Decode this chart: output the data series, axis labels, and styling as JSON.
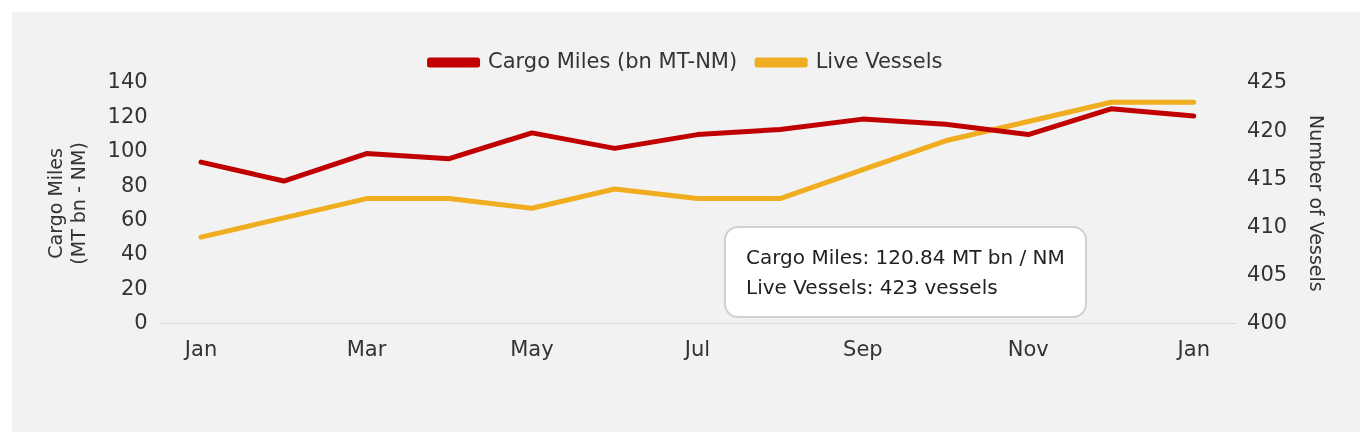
{
  "chart_data": {
    "type": "line",
    "categories": [
      "Jan",
      null,
      "Mar",
      null,
      "May",
      null,
      "Jul",
      null,
      "Sep",
      null,
      "Nov",
      null,
      "Jan"
    ],
    "series": [
      {
        "name": "Cargo Miles (bn MT-NM)",
        "color": "#c00000",
        "values": [
          94,
          83,
          99,
          96,
          111,
          102,
          110,
          113,
          119,
          116,
          110,
          125,
          120.84
        ]
      },
      {
        "name": "Live Vessels",
        "color": "#f0ad1f",
        "axis": "y2",
        "values": [
          409,
          411,
          413,
          413,
          412,
          414,
          413,
          413,
          416,
          419,
          421,
          423,
          423
        ]
      }
    ],
    "ylabel": "Cargo Miles\n(MT bn - NM)",
    "y2label": "Number of Vessels",
    "ylim": [
      0,
      140
    ],
    "yticks": [
      0,
      20,
      40,
      60,
      80,
      100,
      120,
      140
    ],
    "y2lim": [
      400,
      425
    ],
    "y2ticks": [
      400,
      405,
      410,
      415,
      420,
      425
    ],
    "legend": "top",
    "grid": false,
    "marker": "none",
    "line_style": "solid",
    "annotations": [
      "Cargo Miles: 120.84 MT bn / NM\nLive Vessels: 423 vessels"
    ]
  }
}
